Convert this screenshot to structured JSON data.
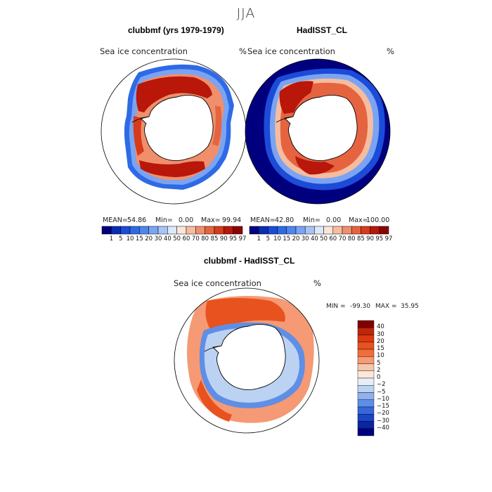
{
  "figure": {
    "season": "JJA"
  },
  "chart_data": [
    {
      "type": "heatmap",
      "projection": "south polar stereographic",
      "title": "clubbmf (yrs 1979-1979)",
      "field": "Sea ice concentration",
      "units": "%",
      "stats": {
        "mean_label": "MEAN=",
        "mean": "54.86",
        "min_label": "Min=",
        "min": "0.00",
        "max_label": "Max=",
        "max": "99.94"
      },
      "levels": [
        "1",
        "5",
        "10",
        "15",
        "20",
        "30",
        "40",
        "50",
        "60",
        "70",
        "80",
        "85",
        "90",
        "95",
        "97"
      ],
      "colors": [
        "#00007f",
        "#0a2bb4",
        "#1c4bd8",
        "#2f6ae6",
        "#4f86ee",
        "#7aa4f2",
        "#a8c4f6",
        "#dde8f8",
        "#fbe5d8",
        "#f6bca0",
        "#ef8f6c",
        "#e5643f",
        "#d73b1c",
        "#b8170a",
        "#8a0402"
      ]
    },
    {
      "type": "heatmap",
      "projection": "south polar stereographic",
      "title": "HadISST_CL",
      "field": "Sea ice concentration",
      "units": "%",
      "stats": {
        "mean_label": "MEAN=",
        "mean": "42.80",
        "min_label": "Min=",
        "min": "0.00",
        "max_label": "Max=",
        "max": "100.00"
      },
      "levels": [
        "1",
        "5",
        "10",
        "15",
        "20",
        "30",
        "40",
        "50",
        "60",
        "70",
        "80",
        "85",
        "90",
        "95",
        "97"
      ],
      "colors": [
        "#00007f",
        "#0a2bb4",
        "#1c4bd8",
        "#2f6ae6",
        "#4f86ee",
        "#7aa4f2",
        "#a8c4f6",
        "#dde8f8",
        "#fbe5d8",
        "#f6bca0",
        "#ef8f6c",
        "#e5643f",
        "#d73b1c",
        "#b8170a",
        "#8a0402"
      ]
    },
    {
      "type": "heatmap",
      "projection": "south polar stereographic",
      "title": "clubbmf - HadISST_CL",
      "field": "Sea ice concentration",
      "units": "%",
      "stats": {
        "min_label": "MIN =",
        "min": "-99.30",
        "max_label": "MAX =",
        "max": "35.95"
      },
      "levels": [
        "40",
        "30",
        "20",
        "15",
        "10",
        "5",
        "2",
        "0",
        "−2",
        "−5",
        "−10",
        "−15",
        "−20",
        "−30",
        "−40"
      ],
      "colors": [
        "#800000",
        "#c0250a",
        "#dc3a12",
        "#e8521e",
        "#f06e3c",
        "#f59a74",
        "#f8c6aa",
        "#fbe8dc",
        "#e7eef8",
        "#bcd2f2",
        "#8fb2ee",
        "#5f8ee6",
        "#3468dc",
        "#1a45c4",
        "#0a26a0",
        "#000080"
      ]
    }
  ]
}
